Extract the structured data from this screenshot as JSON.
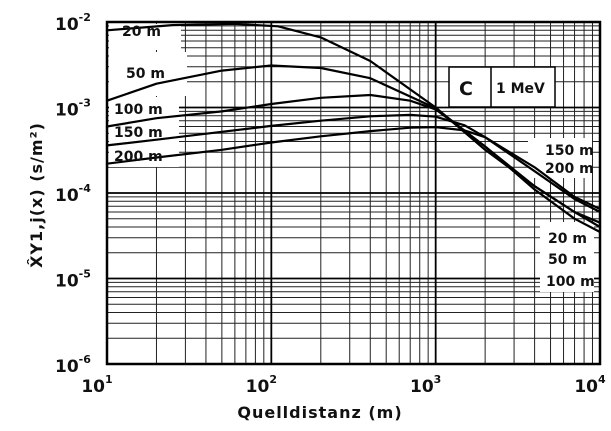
{
  "chart_data": {
    "type": "line",
    "xscale": "log",
    "yscale": "log",
    "xlim": [
      10,
      10000
    ],
    "ylim": [
      1e-06,
      0.01
    ],
    "grid": true,
    "xlabel": "Quelldistanz (m)",
    "ylabel": "X̂Y1,j(x) (s/m²)",
    "x_ticks": [
      {
        "base": "10",
        "exp": "1"
      },
      {
        "base": "10",
        "exp": "2"
      },
      {
        "base": "10",
        "exp": "3"
      },
      {
        "base": "10",
        "exp": "4"
      }
    ],
    "y_ticks": [
      {
        "base": "10",
        "exp": "-2"
      },
      {
        "base": "10",
        "exp": "-3"
      },
      {
        "base": "10",
        "exp": "-4"
      },
      {
        "base": "10",
        "exp": "-5"
      },
      {
        "base": "10",
        "exp": "-6"
      }
    ],
    "box_letter": "C",
    "box_energy": "1 MeV",
    "series": [
      {
        "name": "20 m",
        "x": [
          10,
          25,
          60,
          110,
          200,
          400,
          1000,
          2000,
          4000,
          7000,
          10000
        ],
        "y": [
          0.008,
          0.0092,
          0.0095,
          0.0089,
          0.0066,
          0.0035,
          0.001,
          0.00032,
          0.00012,
          6e-05,
          4.5e-05
        ]
      },
      {
        "name": "50 m",
        "x": [
          10,
          20,
          50,
          100,
          200,
          400,
          1000,
          2000,
          4000,
          7000,
          10000
        ],
        "y": [
          0.0012,
          0.0019,
          0.0027,
          0.0031,
          0.0029,
          0.0022,
          0.00098,
          0.00035,
          0.00012,
          6e-05,
          4e-05
        ]
      },
      {
        "name": "100 m",
        "x": [
          10,
          20,
          50,
          100,
          200,
          400,
          700,
          1000,
          2000,
          4000,
          7000,
          10000
        ],
        "y": [
          0.0006,
          0.00075,
          0.0009,
          0.0011,
          0.0013,
          0.0014,
          0.0012,
          0.00095,
          0.00035,
          0.00011,
          5e-05,
          3.5e-05
        ]
      },
      {
        "name": "150 m",
        "x": [
          10,
          20,
          50,
          100,
          200,
          400,
          700,
          1000,
          1500,
          2000,
          4000,
          7000,
          10000
        ],
        "y": [
          0.00036,
          0.00042,
          0.00052,
          0.00061,
          0.0007,
          0.00079,
          0.00082,
          0.00078,
          0.00062,
          0.00045,
          0.00018,
          8.5e-05,
          6e-05
        ]
      },
      {
        "name": "200 m",
        "x": [
          10,
          20,
          50,
          100,
          200,
          400,
          700,
          1000,
          1500,
          2000,
          4000,
          7000,
          10000
        ],
        "y": [
          0.00022,
          0.00026,
          0.00032,
          0.00039,
          0.00046,
          0.00053,
          0.00058,
          0.00059,
          0.00054,
          0.00045,
          0.0002,
          9e-05,
          6.5e-05
        ]
      }
    ],
    "labels": {
      "left": [
        "20 m",
        "50 m",
        "100 m",
        "150 m",
        "200 m"
      ],
      "right_upper": [
        "150 m",
        "200 m"
      ],
      "right_lower": [
        "20 m",
        "50 m",
        "100 m"
      ]
    }
  }
}
